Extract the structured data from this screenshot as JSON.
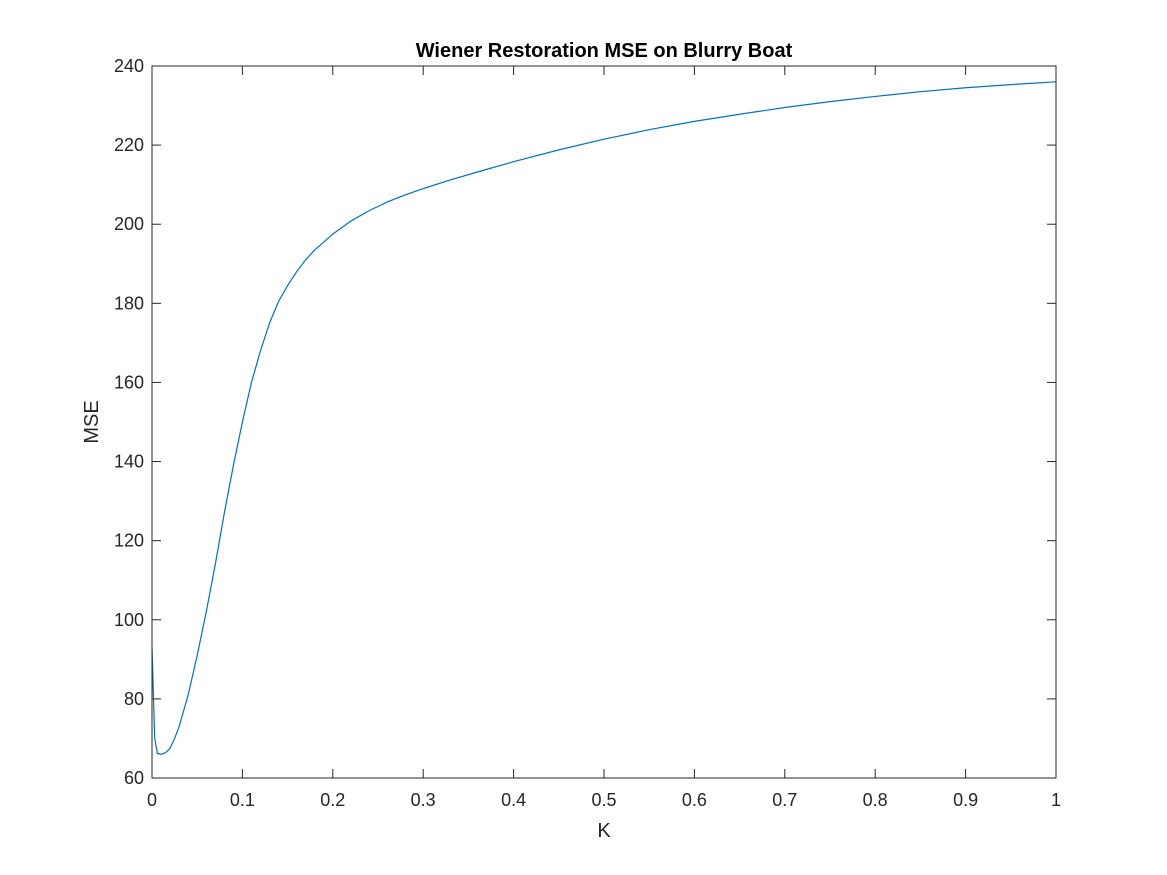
{
  "chart_data": {
    "type": "line",
    "title": "Wiener Restoration MSE on Blurry Boat",
    "xlabel": "K",
    "ylabel": "MSE",
    "xlim": [
      0,
      1
    ],
    "ylim": [
      60,
      240
    ],
    "xticks": [
      "0",
      "0.1",
      "0.2",
      "0.3",
      "0.4",
      "0.5",
      "0.6",
      "0.7",
      "0.8",
      "0.9",
      "1"
    ],
    "yticks": [
      "60",
      "80",
      "100",
      "120",
      "140",
      "160",
      "180",
      "200",
      "220",
      "240"
    ],
    "grid": false,
    "series": [
      {
        "color": "#0072BD",
        "x": [
          0,
          0.003,
          0.006,
          0.01,
          0.015,
          0.02,
          0.025,
          0.03,
          0.035,
          0.04,
          0.045,
          0.05,
          0.06,
          0.07,
          0.08,
          0.09,
          0.1,
          0.11,
          0.12,
          0.13,
          0.14,
          0.15,
          0.16,
          0.17,
          0.18,
          0.19,
          0.2,
          0.22,
          0.24,
          0.26,
          0.28,
          0.3,
          0.33,
          0.36,
          0.4,
          0.45,
          0.5,
          0.55,
          0.6,
          0.65,
          0.7,
          0.75,
          0.8,
          0.85,
          0.9,
          0.95,
          1.0
        ],
        "y": [
          93,
          70,
          66.2,
          66,
          66.4,
          67.5,
          70,
          73,
          77,
          81,
          86,
          91,
          102,
          114,
          127,
          139,
          150,
          160,
          168,
          175,
          180.5,
          184.5,
          188,
          191,
          193.5,
          195.5,
          197.5,
          200.8,
          203.4,
          205.6,
          207.4,
          209,
          211.2,
          213.2,
          215.8,
          218.8,
          221.5,
          223.9,
          226,
          227.8,
          229.5,
          231,
          232.3,
          233.5,
          234.5,
          235.3,
          236
        ]
      }
    ]
  }
}
